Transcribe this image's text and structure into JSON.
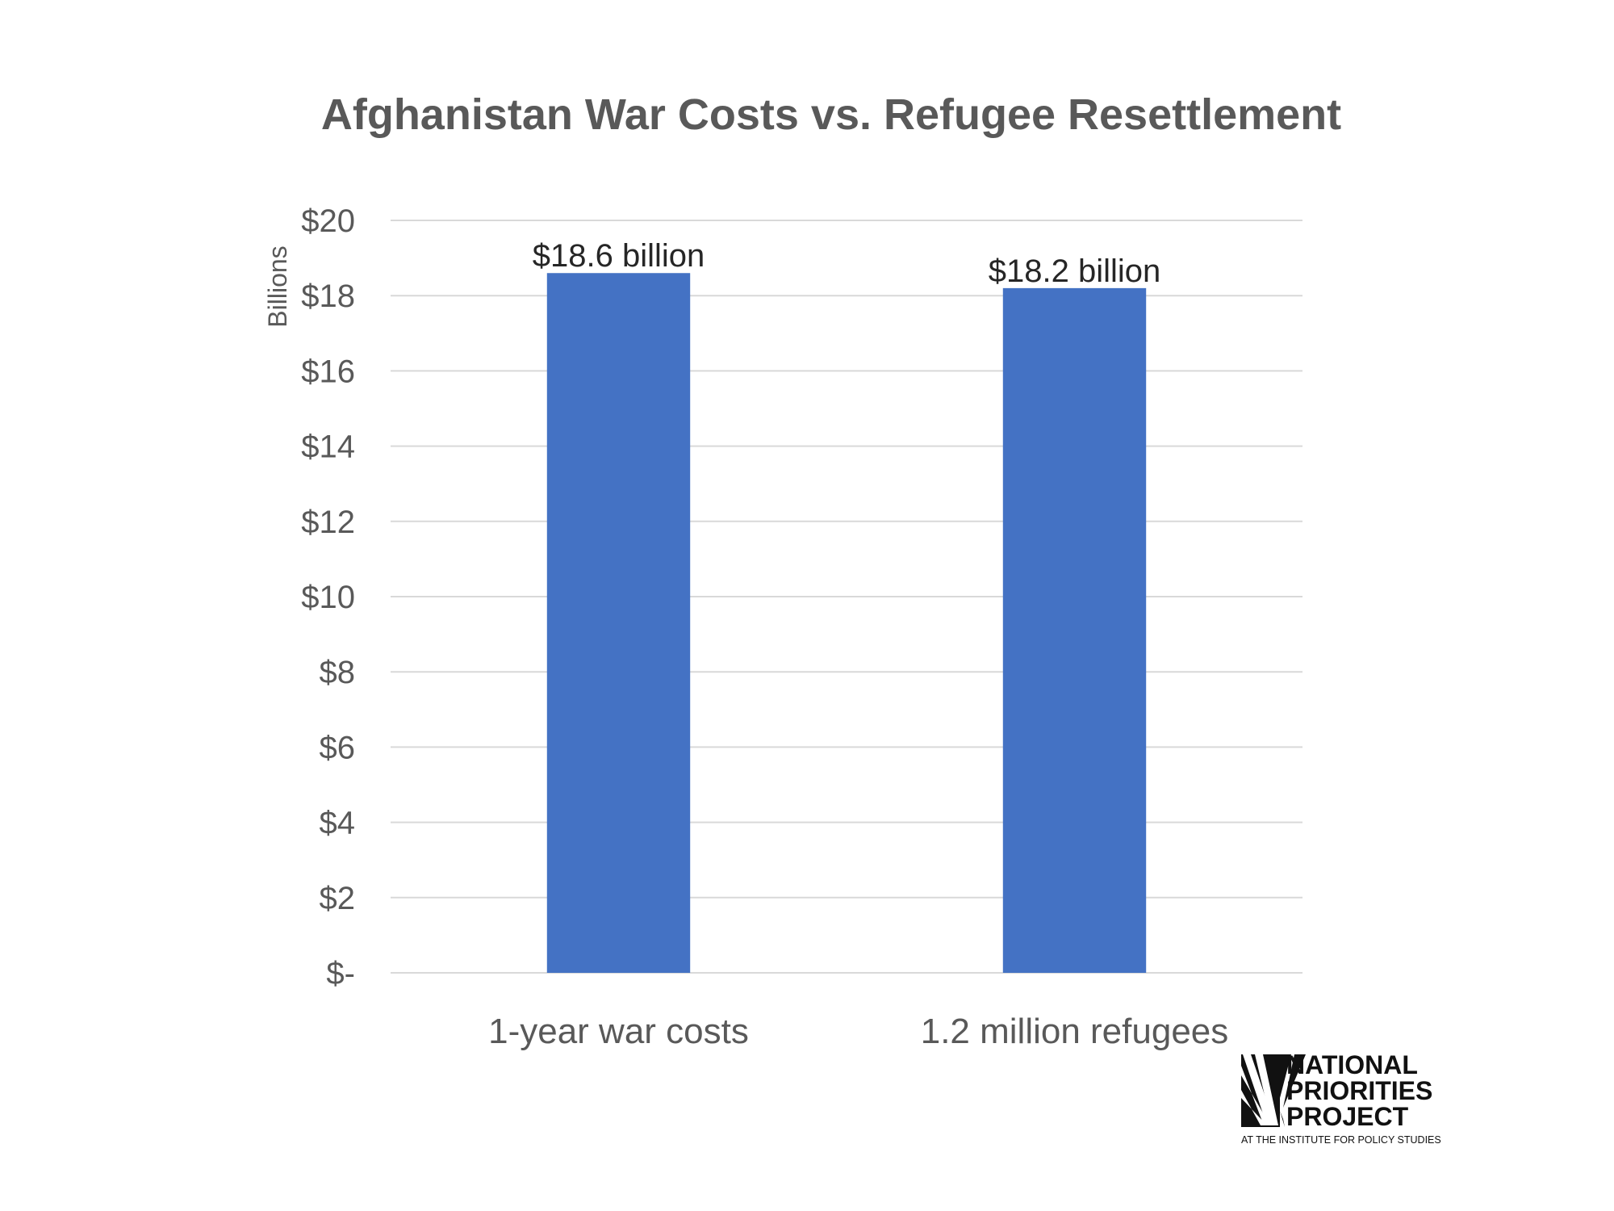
{
  "chart_data": {
    "type": "bar",
    "title": "Afghanistan War Costs vs. Refugee Resettlement",
    "ylabel": "Billions",
    "xlabel": "",
    "categories": [
      "1-year war costs",
      "1.2 million refugees"
    ],
    "values": [
      18.6,
      18.2
    ],
    "data_labels": [
      "$18.6 billion",
      "$18.2 billion"
    ],
    "ylim": [
      0,
      20
    ],
    "yticks": [
      0,
      2,
      4,
      6,
      8,
      10,
      12,
      14,
      16,
      18,
      20
    ],
    "ytick_labels": [
      "$-",
      "$2",
      "$4",
      "$6",
      "$8",
      "$10",
      "$12",
      "$14",
      "$16",
      "$18",
      "$20"
    ],
    "grid": true,
    "bar_color": "#4472C4"
  },
  "logo": {
    "line1": "NATIONAL",
    "line2": "PRIORITIES",
    "line3": "PROJECT",
    "subtitle": "AT THE INSTITUTE FOR POLICY STUDIES"
  }
}
